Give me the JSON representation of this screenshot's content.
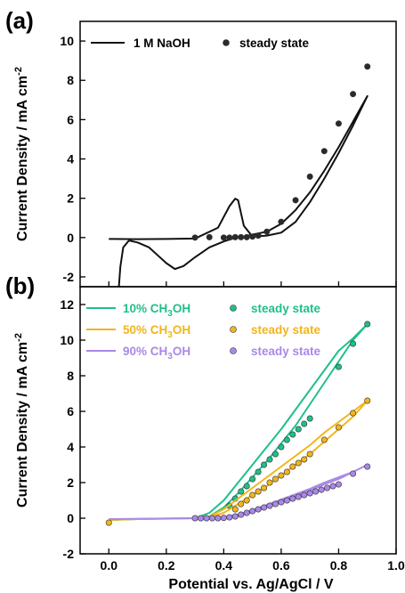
{
  "chart_data": [
    {
      "type": "line",
      "panel_label": "(a)",
      "ylabel": "Current Density / mA cm",
      "ylabel_sup": "-2",
      "xlim": [
        -0.1,
        1.0
      ],
      "ylim": [
        -2.5,
        11
      ],
      "yticks": [
        -2,
        0,
        2,
        4,
        6,
        8,
        10
      ],
      "legend_position": "top",
      "series": [
        {
          "name": "1 M NaOH",
          "kind": "line",
          "color": "#111111",
          "x": [
            0.0,
            0.1,
            0.2,
            0.3,
            0.38,
            0.42,
            0.44,
            0.45,
            0.47,
            0.5,
            0.55,
            0.6,
            0.65,
            0.7,
            0.75,
            0.8,
            0.85,
            0.9,
            0.85,
            0.8,
            0.75,
            0.7,
            0.65,
            0.6,
            0.55,
            0.5,
            0.47,
            0.46,
            0.45,
            0.43,
            0.4,
            0.35,
            0.3,
            0.26,
            0.23,
            0.2,
            0.17,
            0.14,
            0.1,
            0.07,
            0.05,
            0.04,
            0.035
          ],
          "y": [
            -0.07,
            -0.08,
            -0.07,
            -0.05,
            0.5,
            1.6,
            1.98,
            1.9,
            0.6,
            0.05,
            0.1,
            0.25,
            0.8,
            1.8,
            3.0,
            4.3,
            5.7,
            7.2,
            5.9,
            4.6,
            3.4,
            2.3,
            1.4,
            0.7,
            0.3,
            0.15,
            0.05,
            0.02,
            0.0,
            -0.05,
            -0.2,
            -0.5,
            -1.0,
            -1.45,
            -1.6,
            -1.3,
            -0.9,
            -0.5,
            -0.25,
            -0.15,
            -0.5,
            -1.5,
            -2.5
          ]
        },
        {
          "name": "steady state",
          "kind": "scatter",
          "color": "#2a2a2a",
          "x": [
            0.3,
            0.35,
            0.4,
            0.42,
            0.44,
            0.46,
            0.48,
            0.5,
            0.52,
            0.55,
            0.6,
            0.65,
            0.7,
            0.75,
            0.8,
            0.85,
            0.9
          ],
          "y": [
            0.0,
            0.02,
            0.0,
            0.0,
            0.02,
            0.02,
            0.02,
            0.05,
            0.1,
            0.3,
            0.8,
            1.9,
            3.1,
            4.4,
            5.8,
            7.3,
            8.7
          ]
        }
      ]
    },
    {
      "type": "line",
      "panel_label": "(b)",
      "ylabel": "Current Density / mA cm",
      "ylabel_sup": "-2",
      "xlabel": "Potential vs. Ag/AgCl / V",
      "xlim": [
        -0.1,
        1.0
      ],
      "ylim": [
        -2,
        13
      ],
      "yticks": [
        -2,
        0,
        2,
        4,
        6,
        8,
        10,
        12
      ],
      "xticks": [
        0.0,
        0.2,
        0.4,
        0.6,
        0.8,
        1.0
      ],
      "legend_position": "top-left",
      "series": [
        {
          "name": "10% CH",
          "name_sub": "3",
          "name_end": "OH",
          "kind": "line",
          "color": "#1fbf8c",
          "x": [
            0.0,
            0.1,
            0.2,
            0.3,
            0.35,
            0.4,
            0.45,
            0.5,
            0.55,
            0.6,
            0.65,
            0.7,
            0.75,
            0.8,
            0.85,
            0.9,
            0.85,
            0.8,
            0.75,
            0.7,
            0.65,
            0.6,
            0.55,
            0.5,
            0.45,
            0.4,
            0.35,
            0.3,
            0.2,
            0.1,
            0.0
          ],
          "y": [
            -0.1,
            -0.05,
            -0.02,
            0.0,
            0.3,
            1.0,
            2.0,
            3.0,
            4.0,
            5.0,
            6.1,
            7.2,
            8.3,
            9.4,
            10.1,
            10.9,
            10.0,
            8.8,
            7.6,
            6.4,
            5.2,
            4.2,
            3.2,
            2.3,
            1.4,
            0.6,
            0.1,
            0.0,
            -0.02,
            -0.05,
            -0.1
          ]
        },
        {
          "name": "steady state",
          "kind": "scatter",
          "color": "#1fbf8c",
          "x": [
            0.42,
            0.44,
            0.46,
            0.48,
            0.5,
            0.52,
            0.54,
            0.56,
            0.58,
            0.6,
            0.62,
            0.64,
            0.66,
            0.68,
            0.7,
            0.8,
            0.85,
            0.9
          ],
          "y": [
            0.7,
            1.1,
            1.5,
            1.8,
            2.2,
            2.6,
            3.0,
            3.3,
            3.6,
            4.0,
            4.4,
            4.7,
            5.0,
            5.3,
            5.6,
            8.5,
            9.8,
            10.9
          ]
        },
        {
          "name": "50% CH",
          "name_sub": "3",
          "name_end": "OH",
          "kind": "line",
          "color": "#f2b51c",
          "x": [
            0.0,
            0.1,
            0.2,
            0.3,
            0.35,
            0.4,
            0.45,
            0.5,
            0.55,
            0.6,
            0.65,
            0.7,
            0.75,
            0.8,
            0.85,
            0.9,
            0.85,
            0.8,
            0.75,
            0.7,
            0.65,
            0.6,
            0.55,
            0.5,
            0.45,
            0.4,
            0.35,
            0.3,
            0.2,
            0.1,
            0.0
          ],
          "y": [
            -0.1,
            -0.05,
            -0.03,
            0.0,
            0.1,
            0.5,
            1.1,
            1.7,
            2.3,
            2.9,
            3.5,
            4.1,
            4.8,
            5.4,
            6.0,
            6.6,
            5.7,
            5.0,
            4.3,
            3.6,
            3.0,
            2.4,
            1.8,
            1.3,
            0.8,
            0.3,
            0.05,
            0.0,
            -0.03,
            -0.05,
            -0.1
          ]
        },
        {
          "name": "steady state",
          "kind": "scatter",
          "color": "#f2b51c",
          "x": [
            0.0,
            0.44,
            0.46,
            0.48,
            0.5,
            0.52,
            0.54,
            0.56,
            0.58,
            0.6,
            0.62,
            0.64,
            0.66,
            0.68,
            0.7,
            0.75,
            0.8,
            0.85,
            0.9
          ],
          "y": [
            -0.25,
            0.5,
            0.8,
            1.0,
            1.3,
            1.5,
            1.7,
            2.0,
            2.2,
            2.4,
            2.6,
            2.9,
            3.1,
            3.3,
            3.6,
            4.4,
            5.1,
            5.9,
            6.6
          ]
        },
        {
          "name": "90% CH",
          "name_sub": "3",
          "name_end": "OH",
          "kind": "line",
          "color": "#a989e8",
          "x": [
            0.0,
            0.1,
            0.2,
            0.3,
            0.35,
            0.4,
            0.45,
            0.5,
            0.55,
            0.6,
            0.65,
            0.7,
            0.75,
            0.8,
            0.85,
            0.9,
            0.85,
            0.8,
            0.75,
            0.7,
            0.65,
            0.6,
            0.55,
            0.5,
            0.45,
            0.4,
            0.35,
            0.3,
            0.2,
            0.1,
            0.0
          ],
          "y": [
            -0.05,
            -0.03,
            -0.02,
            0.0,
            0.02,
            0.05,
            0.2,
            0.45,
            0.75,
            1.05,
            1.35,
            1.65,
            2.0,
            2.3,
            2.6,
            3.0,
            2.6,
            2.2,
            1.9,
            1.55,
            1.25,
            0.95,
            0.65,
            0.35,
            0.12,
            0.03,
            0.0,
            0.0,
            -0.02,
            -0.03,
            -0.05
          ]
        },
        {
          "name": "steady state",
          "kind": "scatter",
          "color": "#a989e8",
          "x": [
            0.3,
            0.32,
            0.34,
            0.36,
            0.38,
            0.4,
            0.42,
            0.44,
            0.46,
            0.48,
            0.5,
            0.52,
            0.54,
            0.56,
            0.58,
            0.6,
            0.62,
            0.64,
            0.66,
            0.68,
            0.7,
            0.72,
            0.74,
            0.76,
            0.78,
            0.8,
            0.85,
            0.9
          ],
          "y": [
            0.0,
            0.0,
            0.0,
            0.0,
            0.0,
            0.02,
            0.05,
            0.1,
            0.2,
            0.3,
            0.4,
            0.5,
            0.6,
            0.7,
            0.8,
            0.9,
            1.0,
            1.1,
            1.2,
            1.3,
            1.4,
            1.5,
            1.6,
            1.7,
            1.8,
            1.9,
            2.5,
            2.9
          ]
        }
      ]
    }
  ]
}
